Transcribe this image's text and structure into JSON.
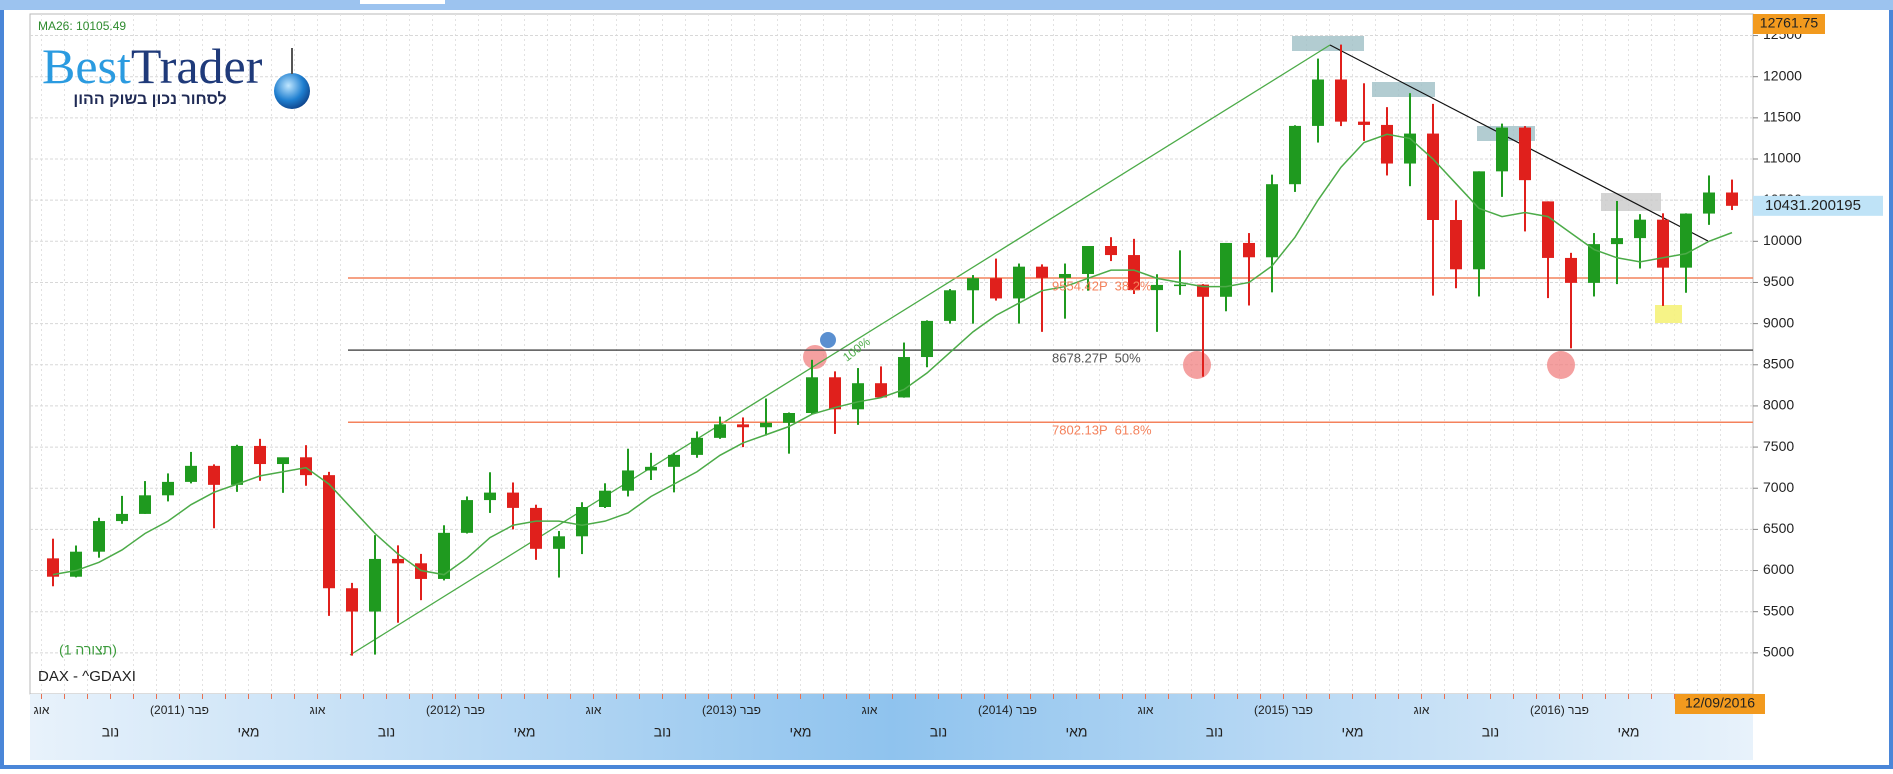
{
  "chart_data": {
    "type": "candlestick",
    "title": "DAX - ^GDAXI",
    "subtitle": "(תצורה 1)",
    "ma_label": "MA26: 10105.49",
    "last_date": "12/09/2016",
    "trend_label": "100%",
    "logo": {
      "part1": "Best",
      "part2": "Trader",
      "tagline": "לסחור נכון בשוק ההון"
    },
    "up_color": "#1f9a1f",
    "down_color": "#e0201c",
    "ma_color": "#4cab48",
    "grid": true,
    "ylim": [
      4500,
      12761.75
    ],
    "yticks": [
      5000,
      5500,
      6000,
      6500,
      7000,
      7500,
      8000,
      8500,
      9000,
      9500,
      10000,
      10500,
      11000,
      11500,
      12000,
      12500
    ],
    "categories": [
      "אוג",
      null,
      null,
      "נוב",
      null,
      null,
      "פבר (2011)",
      null,
      null,
      "מאי",
      null,
      null,
      "אוג",
      null,
      null,
      "נוב",
      null,
      null,
      "פבר (2012)",
      null,
      null,
      "מאי",
      null,
      null,
      "אוג",
      null,
      null,
      "נוב",
      null,
      null,
      "פבר (2013)",
      null,
      null,
      "מאי",
      null,
      null,
      "אוג",
      null,
      null,
      "נוב",
      null,
      null,
      "פבר (2014)",
      null,
      null,
      "מאי",
      null,
      null,
      "אוג",
      null,
      null,
      "נוב",
      null,
      null,
      "פבר (2015)",
      null,
      null,
      "מאי",
      null,
      null,
      "אוג",
      null,
      null,
      "נוב",
      null,
      null,
      "פבר (2016)",
      null,
      null,
      "מאי",
      null,
      null,
      "אוג",
      null
    ],
    "open": [
      6148,
      5925,
      6229,
      6601,
      6688,
      6914,
      7077,
      7272,
      7041,
      7514,
      7294,
      7376,
      7159,
      5785,
      5502,
      6141,
      6088,
      5898,
      6458,
      6856,
      6947,
      6761,
      6264,
      6416,
      6772,
      6970,
      7216,
      7260,
      7405,
      7612,
      7776,
      7741,
      7795,
      7914,
      8348,
      7959,
      8276,
      8103,
      8594,
      9033,
      9405,
      9552,
      9306,
      9692,
      9556,
      9603,
      9943,
      9833,
      9407,
      9470,
      9474,
      9326,
      9980,
      9806,
      10694,
      11402,
      11966,
      11454,
      11414,
      10945,
      11309,
      10259,
      9660,
      10850,
      11382,
      10485,
      9798,
      9495,
      9966,
      10039,
      10263,
      9680,
      10337,
      10593
    ],
    "high": [
      6387,
      6304,
      6641,
      6907,
      7087,
      7180,
      7441,
      7290,
      7528,
      7600,
      7330,
      7523,
      7199,
      5850,
      6430,
      6306,
      6202,
      6550,
      6900,
      7194,
      7070,
      6800,
      6480,
      6830,
      7060,
      7480,
      7430,
      7430,
      7690,
      7870,
      7860,
      8090,
      7920,
      8560,
      8420,
      8460,
      8480,
      8770,
      9040,
      9420,
      9590,
      9790,
      9730,
      9720,
      9730,
      9940,
      10050,
      10030,
      9600,
      9890,
      9480,
      9980,
      10100,
      10810,
      11410,
      12220,
      12390,
      11920,
      11630,
      11800,
      11670,
      10500,
      10850,
      11430,
      11400,
      10485,
      9860,
      10100,
      10490,
      10330,
      10340,
      10340,
      10800,
      10750
    ],
    "low": [
      5809,
      5917,
      6156,
      6568,
      6688,
      6840,
      7059,
      6514,
      6956,
      7090,
      6944,
      7030,
      5449,
      4966,
      4979,
      5366,
      5640,
      5880,
      6450,
      6700,
      6500,
      6130,
      5915,
      6200,
      6760,
      6900,
      7100,
      6950,
      7370,
      7600,
      7500,
      7640,
      7420,
      7900,
      7660,
      7770,
      8100,
      8100,
      8470,
      9000,
      9000,
      9280,
      9000,
      8900,
      9060,
      9400,
      9760,
      9360,
      8900,
      9350,
      8355,
      9150,
      9220,
      9380,
      10600,
      11200,
      11400,
      11220,
      10800,
      10670,
      9340,
      9430,
      9330,
      10540,
      10120,
      9310,
      8700,
      9330,
      9480,
      9670,
      9215,
      9375,
      10200,
      10380
    ],
    "close": [
      5925,
      6229,
      6601,
      6688,
      6914,
      7077,
      7272,
      7041,
      7514,
      7294,
      7376,
      7159,
      5785,
      5502,
      6141,
      6088,
      5898,
      6458,
      6856,
      6947,
      6761,
      6264,
      6416,
      6772,
      6970,
      7216,
      7260,
      7405,
      7612,
      7776,
      7741,
      7795,
      7914,
      8348,
      7959,
      8276,
      8103,
      8594,
      9033,
      9405,
      9552,
      9306,
      9692,
      9556,
      9603,
      9943,
      9833,
      9407,
      9470,
      9474,
      9326,
      9980,
      9806,
      10694,
      11402,
      11966,
      11454,
      11414,
      10945,
      11309,
      10259,
      9660,
      10850,
      11382,
      10743,
      9798,
      9495,
      9966,
      10039,
      10263,
      9680,
      10337,
      10593,
      10431.200195
    ],
    "ma": [
      5950,
      6000,
      6100,
      6250,
      6450,
      6600,
      6800,
      6950,
      7050,
      7150,
      7200,
      7250,
      7050,
      6750,
      6450,
      6200,
      6000,
      5950,
      6150,
      6400,
      6550,
      6600,
      6600,
      6550,
      6600,
      6700,
      6900,
      7050,
      7200,
      7400,
      7550,
      7650,
      7750,
      7900,
      7980,
      8050,
      8100,
      8200,
      8400,
      8650,
      8900,
      9100,
      9250,
      9400,
      9450,
      9550,
      9650,
      9650,
      9550,
      9500,
      9450,
      9450,
      9500,
      9700,
      10050,
      10500,
      10900,
      11200,
      11300,
      11250,
      11000,
      10700,
      10400,
      10300,
      10350,
      10300,
      10100,
      9900,
      9800,
      9750,
      9800,
      9850,
      10000,
      10105.49
    ],
    "levels": [
      {
        "value": 9554.42,
        "label": "9554.42P  38.2%",
        "color": "#f4825c"
      },
      {
        "value": 8678.27,
        "label": "8678.27P  50%",
        "color": "#555555"
      },
      {
        "value": 7802.13,
        "label": "7802.13P  61.8%",
        "color": "#f4825c"
      }
    ]
  }
}
